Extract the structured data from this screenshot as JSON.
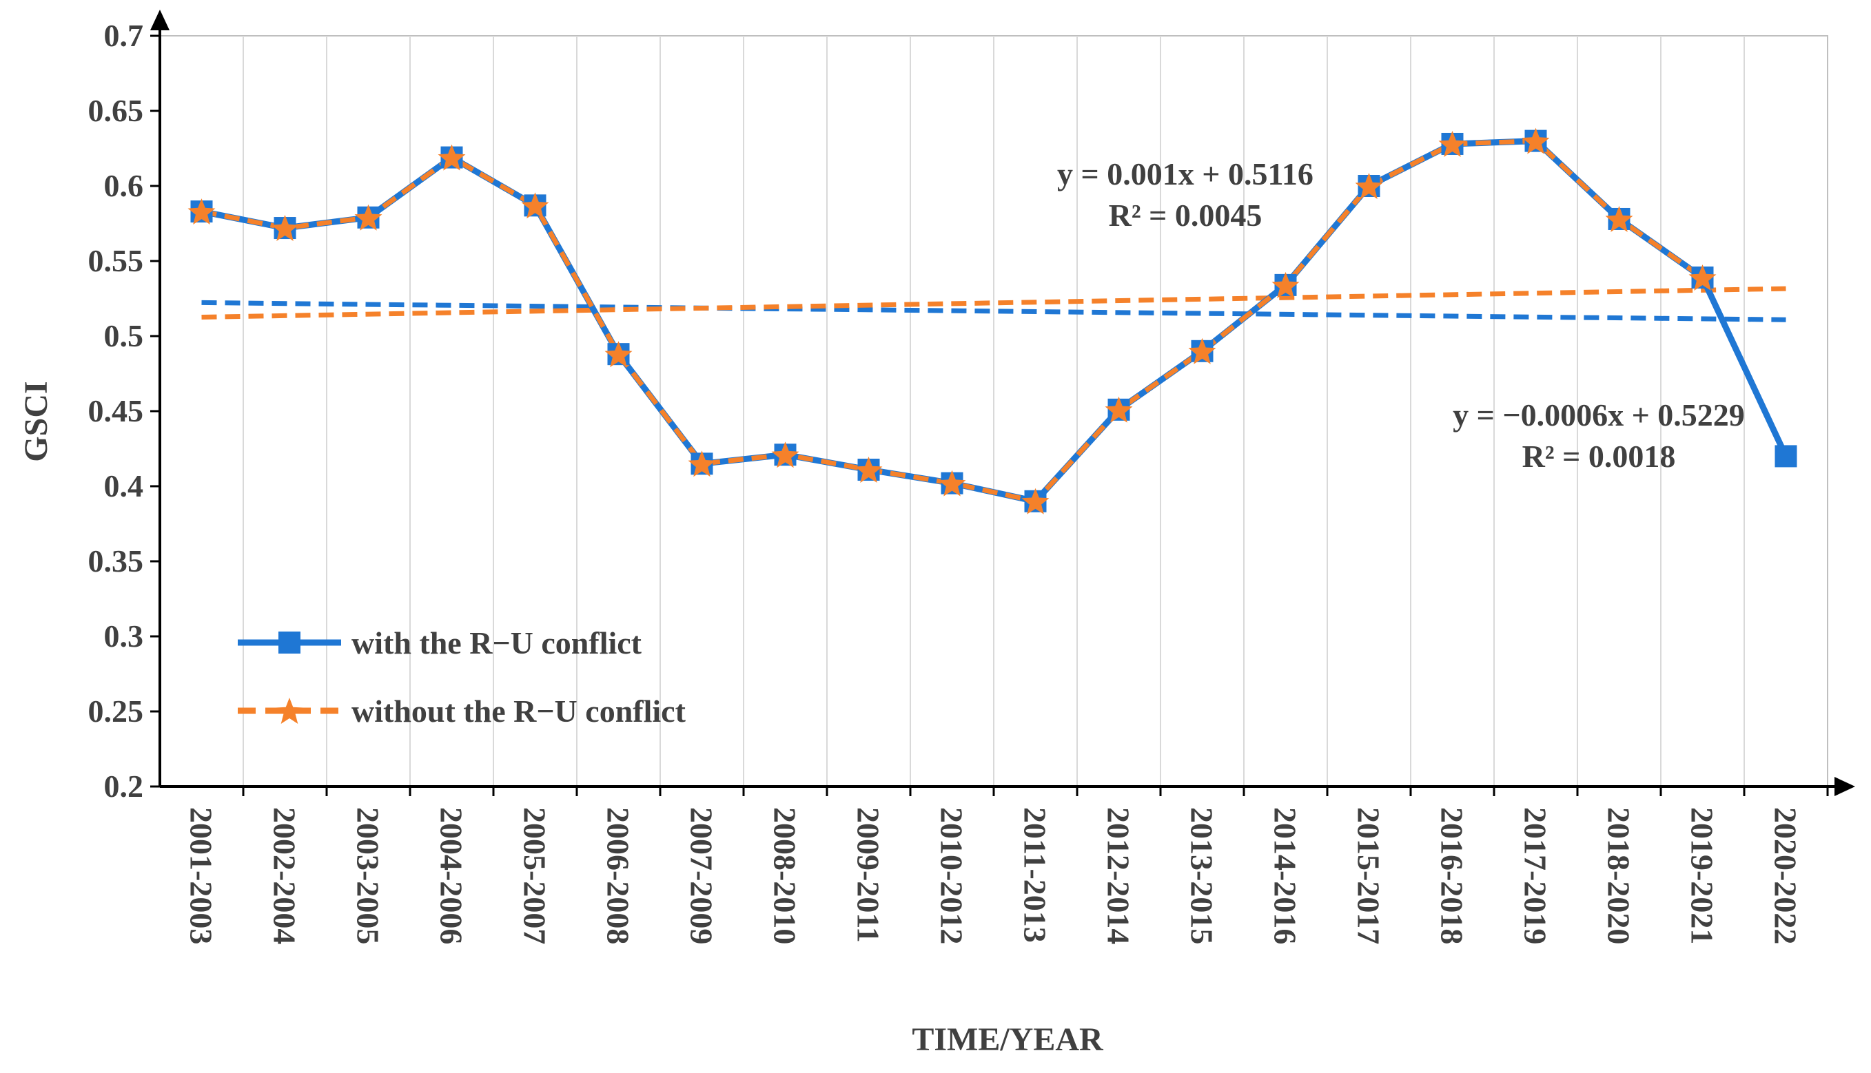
{
  "chart_data": {
    "type": "line",
    "title": "",
    "xlabel": "TIME/YEAR",
    "ylabel": "GSCI",
    "ylim": [
      0.2,
      0.7
    ],
    "yticks": [
      0.2,
      0.25,
      0.3,
      0.35,
      0.4,
      0.45,
      0.5,
      0.55,
      0.6,
      0.65,
      0.7
    ],
    "ytick_labels": [
      "0.2",
      "0.25",
      "0.3",
      "0.35",
      "0.4",
      "0.45",
      "0.5",
      "0.55",
      "0.6",
      "0.65",
      "0.7"
    ],
    "grid": "vertical",
    "categories": [
      "2001-2003",
      "2002-2004",
      "2003-2005",
      "2004-2006",
      "2005-2007",
      "2006-2008",
      "2007-2009",
      "2008-2010",
      "2009-2011",
      "2010-2012",
      "2011-2013",
      "2012-2014",
      "2013-2015",
      "2014-2016",
      "2015-2017",
      "2016-2018",
      "2017-2019",
      "2018-2020",
      "2019-2021",
      "2020-2022"
    ],
    "series": [
      {
        "name": "with the R−U conflict",
        "color": "#1f77d4",
        "marker": "square",
        "line_style": "solid",
        "values": [
          0.583,
          0.572,
          0.579,
          0.619,
          0.587,
          0.488,
          0.415,
          0.421,
          0.411,
          0.402,
          0.39,
          0.451,
          0.49,
          0.534,
          0.6,
          0.628,
          0.63,
          0.578,
          0.539,
          0.42
        ]
      },
      {
        "name": "without the R−U conflict",
        "color": "#f5812a",
        "marker": "star",
        "line_style": "dashed",
        "values": [
          0.583,
          0.572,
          0.579,
          0.619,
          0.587,
          0.488,
          0.415,
          0.421,
          0.411,
          0.402,
          0.39,
          0.451,
          0.49,
          0.534,
          0.6,
          0.628,
          0.63,
          0.578,
          0.539,
          null
        ]
      }
    ],
    "trendlines": [
      {
        "series": "with the R−U conflict",
        "color": "#1f77d4",
        "slope": -0.0006,
        "intercept": 0.5229,
        "equation": "y = −0.0006x + 0.5229",
        "r2_label": "R² = 0.0018"
      },
      {
        "series": "without the R−U conflict",
        "color": "#f5812a",
        "slope": 0.001,
        "intercept": 0.5116,
        "equation": "y = 0.001x + 0.5116",
        "r2_label": "R² = 0.0045"
      }
    ],
    "legend_position": "bottom-left"
  }
}
